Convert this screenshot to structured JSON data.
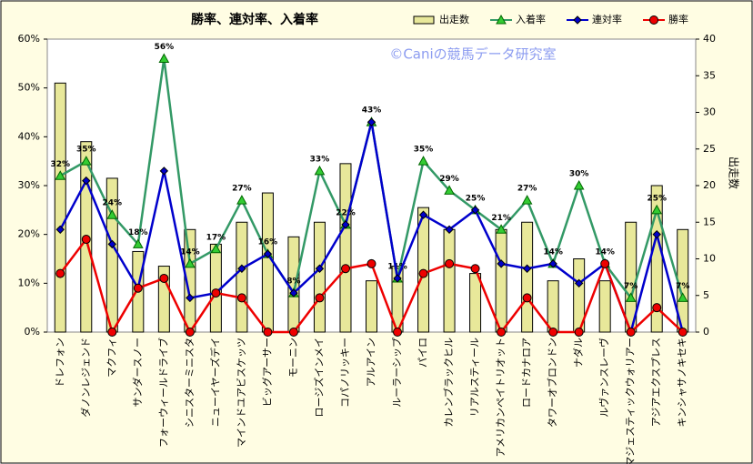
{
  "chart_data": {
    "type": "combo",
    "title": "勝率、連対率、入着率",
    "annotation": "©Caniの競馬データ研究室",
    "y2_label": "出走数",
    "categories": [
      "ドレフォン",
      "ダノンレジェンド",
      "マクフィ",
      "サンダースノー",
      "フォーウィールドライブ",
      "シニスターミニスタ",
      "ニューイヤーズデイ",
      "マインドユアビスケッツ",
      "ビッグアーサー",
      "モーニン",
      "ロージズインメイ",
      "コパノリッキー",
      "アルアイン",
      "ルーラーシップ",
      "パイロ",
      "カレンブラックヒル",
      "リアルスティール",
      "アメリカンペイトリオット",
      "ロードカナロア",
      "タワーオブロンドン",
      "ナダル",
      "ルヴァンスレーヴ",
      "マジェスティックウォリアー",
      "アジアエクスプレス",
      "キンシャサノキセキ"
    ],
    "series": [
      {
        "name": "出走数",
        "type": "bar",
        "axis": "y2",
        "color": "#e8e89a",
        "values": [
          34,
          26,
          21,
          11,
          9,
          14,
          12,
          15,
          19,
          13,
          15,
          23,
          7,
          9,
          17,
          14,
          8,
          14,
          15,
          7,
          10,
          7,
          15,
          20,
          14
        ]
      },
      {
        "name": "入着率",
        "type": "line",
        "marker": "triangle",
        "color": "#339966",
        "values": [
          32,
          35,
          24,
          18,
          56,
          14,
          17,
          27,
          16,
          8,
          33,
          22,
          43,
          11,
          35,
          29,
          25,
          21,
          27,
          14,
          30,
          14,
          7,
          25,
          7
        ],
        "value_labels": [
          "32%",
          "35%",
          "24%",
          "18%",
          "56%",
          "14%",
          "17%",
          "27%",
          "16%",
          "8%",
          "33%",
          "22%",
          "43%",
          "11%",
          "35%",
          "29%",
          "25%",
          "21%",
          "27%",
          "14%",
          "30%",
          "14%",
          "7%",
          "25%",
          "7%"
        ]
      },
      {
        "name": "連対率",
        "type": "line",
        "marker": "diamond",
        "color": "#0000cc",
        "values": [
          21,
          31,
          18,
          9,
          33,
          7,
          8,
          13,
          16,
          8,
          13,
          22,
          43,
          11,
          24,
          21,
          25,
          14,
          13,
          14,
          10,
          14,
          0,
          20,
          0
        ]
      },
      {
        "name": "勝率",
        "type": "line",
        "marker": "circle",
        "color": "#ee0000",
        "values": [
          12,
          19,
          0,
          9,
          11,
          0,
          8,
          7,
          0,
          0,
          7,
          13,
          14,
          0,
          12,
          14,
          13,
          0,
          7,
          0,
          0,
          14,
          0,
          5,
          0
        ]
      }
    ],
    "ylim": [
      0,
      60
    ],
    "yticks": [
      {
        "value": 0,
        "label": "0%"
      },
      {
        "value": 10,
        "label": "10%"
      },
      {
        "value": 20,
        "label": "20%"
      },
      {
        "value": 30,
        "label": "30%"
      },
      {
        "value": 40,
        "label": "40%"
      },
      {
        "value": 50,
        "label": "50%"
      },
      {
        "value": 60,
        "label": "60%"
      }
    ],
    "y2lim": [
      0,
      40
    ],
    "y2ticks": [
      0,
      5,
      10,
      15,
      20,
      25,
      30,
      35,
      40
    ],
    "legend": "top-right"
  }
}
